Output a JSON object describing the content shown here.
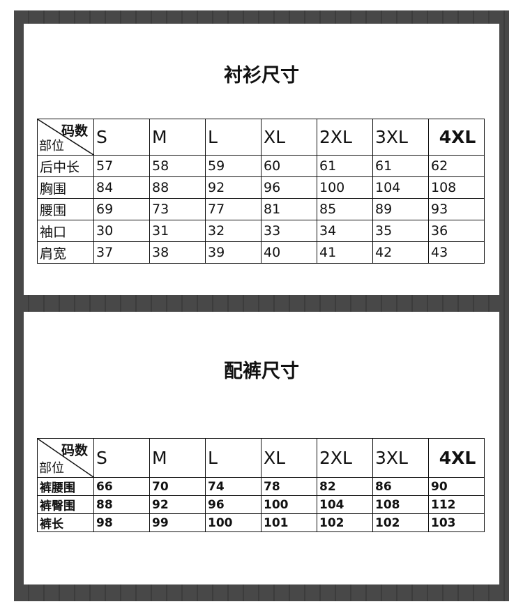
{
  "shirt": {
    "title": "衬衫尺寸",
    "corner_top": "码数",
    "corner_bottom": "部位",
    "sizes": [
      "S",
      "M",
      "L",
      "XL",
      "2XL",
      "3XL",
      "4XL"
    ],
    "rows": [
      {
        "label": "后中长",
        "values": [
          "57",
          "58",
          "59",
          "60",
          "61",
          "61",
          "62"
        ]
      },
      {
        "label": "胸围",
        "values": [
          "84",
          "88",
          "92",
          "96",
          "100",
          "104",
          "108"
        ]
      },
      {
        "label": "腰围",
        "values": [
          "69",
          "73",
          "77",
          "81",
          "85",
          "89",
          "93"
        ]
      },
      {
        "label": "袖口",
        "values": [
          "30",
          "31",
          "32",
          "33",
          "34",
          "35",
          "36"
        ]
      },
      {
        "label": "肩宽",
        "values": [
          "37",
          "38",
          "39",
          "40",
          "41",
          "42",
          "43"
        ]
      }
    ]
  },
  "pants": {
    "title": "配裤尺寸",
    "corner_top": "码数",
    "corner_bottom": "部位",
    "sizes": [
      "S",
      "M",
      "L",
      "XL",
      "2XL",
      "3XL",
      "4XL"
    ],
    "rows": [
      {
        "label": "裤腰围",
        "values": [
          "66",
          "70",
          "74",
          "78",
          "82",
          "86",
          "90"
        ]
      },
      {
        "label": "裤臀围",
        "values": [
          "88",
          "92",
          "96",
          "100",
          "104",
          "108",
          "112"
        ]
      },
      {
        "label": "裤长",
        "values": [
          "98",
          "99",
          "100",
          "101",
          "102",
          "102",
          "103"
        ]
      }
    ]
  }
}
